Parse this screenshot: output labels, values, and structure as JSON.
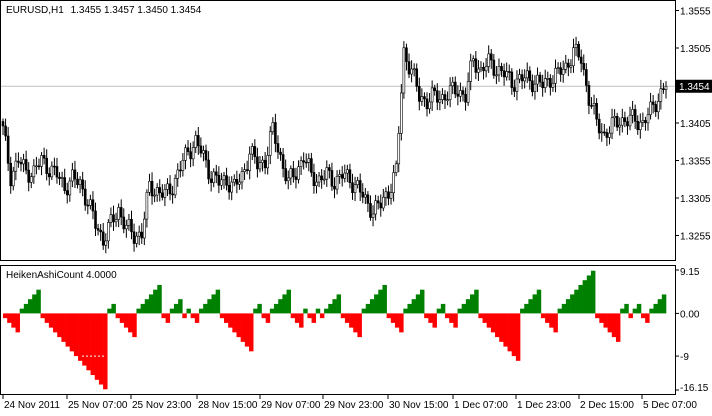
{
  "chart_data": [
    {
      "type": "candlestick",
      "title": "EURUSD,H1",
      "ohlc_header": "1.3455 1.3457 1.3450 1.3454",
      "current_price_label": "1.3454",
      "current_price": 1.3454,
      "ylim": [
        1.3225,
        1.3565
      ],
      "y_ticks": [
        {
          "value": 1.3555,
          "label": "1.3555"
        },
        {
          "value": 1.3505,
          "label": "1.3505"
        },
        {
          "value": 1.3454,
          "label": "1.3454"
        },
        {
          "value": 1.3405,
          "label": "1.3405"
        },
        {
          "value": 1.3355,
          "label": "1.3355"
        },
        {
          "value": 1.3305,
          "label": "1.3305"
        },
        {
          "value": 1.3255,
          "label": "1.3255"
        }
      ],
      "x_labels": [
        "24 Nov 2011",
        "25 Nov 07:00",
        "25 Nov 23:00",
        "28 Nov 15:00",
        "29 Nov 07:00",
        "29 Nov 23:00",
        "30 Nov 15:00",
        "1 Dec 07:00",
        "1 Dec 23:00",
        "2 Dec 15:00",
        "5 Dec 07:00"
      ],
      "colors": {
        "candle_up": "#ffffff",
        "candle_down": "#000000",
        "outline": "#000000",
        "price_line": "#c0c0c0"
      },
      "close_path": [
        [
          0,
          1.3395
        ],
        [
          3,
          1.3335
        ],
        [
          6,
          1.3355
        ],
        [
          9,
          1.334
        ],
        [
          12,
          1.334
        ],
        [
          15,
          1.3355
        ],
        [
          18,
          1.3345
        ],
        [
          21,
          1.3335
        ],
        [
          24,
          1.332
        ],
        [
          27,
          1.333
        ],
        [
          30,
          1.3325
        ],
        [
          33,
          1.33
        ],
        [
          36,
          1.327
        ],
        [
          39,
          1.325
        ],
        [
          42,
          1.327
        ],
        [
          45,
          1.329
        ],
        [
          48,
          1.3265
        ],
        [
          51,
          1.3255
        ],
        [
          54,
          1.3258
        ],
        [
          57,
          1.332
        ],
        [
          60,
          1.3315
        ],
        [
          63,
          1.3308
        ],
        [
          66,
          1.3322
        ],
        [
          69,
          1.3345
        ],
        [
          72,
          1.3368
        ],
        [
          75,
          1.338
        ],
        [
          78,
          1.336
        ],
        [
          81,
          1.3335
        ],
        [
          84,
          1.3325
        ],
        [
          87,
          1.333
        ],
        [
          90,
          1.3318
        ],
        [
          93,
          1.3335
        ],
        [
          96,
          1.3365
        ],
        [
          99,
          1.335
        ],
        [
          102,
          1.3355
        ],
        [
          105,
          1.3395
        ],
        [
          108,
          1.336
        ],
        [
          111,
          1.3325
        ],
        [
          114,
          1.334
        ],
        [
          117,
          1.336
        ],
        [
          120,
          1.3335
        ],
        [
          123,
          1.333
        ],
        [
          126,
          1.3335
        ],
        [
          129,
          1.3328
        ],
        [
          132,
          1.3335
        ],
        [
          135,
          1.333
        ],
        [
          138,
          1.332
        ],
        [
          141,
          1.33
        ],
        [
          144,
          1.329
        ],
        [
          147,
          1.3295
        ],
        [
          150,
          1.3315
        ],
        [
          153,
          1.334
        ],
        [
          156,
          1.35
        ],
        [
          159,
          1.3475
        ],
        [
          162,
          1.344
        ],
        [
          165,
          1.3435
        ],
        [
          168,
          1.344
        ],
        [
          171,
          1.344
        ],
        [
          174,
          1.3445
        ],
        [
          177,
          1.345
        ],
        [
          180,
          1.344
        ],
        [
          183,
          1.349
        ],
        [
          186,
          1.3475
        ],
        [
          189,
          1.3485
        ],
        [
          192,
          1.3478
        ],
        [
          195,
          1.347
        ],
        [
          198,
          1.346
        ],
        [
          201,
          1.3462
        ],
        [
          204,
          1.3465
        ],
        [
          207,
          1.346
        ],
        [
          210,
          1.3455
        ],
        [
          213,
          1.3465
        ],
        [
          216,
          1.347
        ],
        [
          219,
          1.348
        ],
        [
          222,
          1.35
        ],
        [
          225,
          1.349
        ],
        [
          228,
          1.344
        ],
        [
          231,
          1.3405
        ],
        [
          234,
          1.339
        ],
        [
          237,
          1.34
        ],
        [
          240,
          1.341
        ],
        [
          243,
          1.3408
        ],
        [
          246,
          1.341
        ],
        [
          249,
          1.3405
        ],
        [
          252,
          1.342
        ],
        [
          255,
          1.344
        ],
        [
          258,
          1.3454
        ]
      ]
    },
    {
      "type": "bar",
      "title": "HeikenAshiCount 4.0000",
      "ylim": [
        -16.15,
        9.15
      ],
      "y_ticks": [
        {
          "value": 9.15,
          "label": "9.15"
        },
        {
          "value": 0.0,
          "label": "0.00"
        },
        {
          "value": -9,
          "label": "-9"
        },
        {
          "value": -16.15,
          "label": "-16.15"
        }
      ],
      "dashed_level": -9,
      "colors": {
        "positive": "#008000",
        "negative": "#ff0000"
      },
      "values": [
        -1,
        -2,
        -3,
        -4,
        1,
        2,
        3,
        4,
        5,
        -1,
        -2,
        -3,
        -4,
        -5,
        -6,
        -7,
        -8,
        -9,
        -10,
        -11,
        -12,
        -13,
        -14,
        -15,
        -16,
        1,
        2,
        -1,
        -2,
        -3,
        -4,
        -5,
        1,
        2,
        3,
        4,
        5,
        6,
        -1,
        -2,
        1,
        2,
        3,
        -1,
        1,
        -1,
        -2,
        1,
        2,
        3,
        4,
        5,
        -1,
        -2,
        -3,
        -4,
        -5,
        -6,
        -7,
        -8,
        1,
        2,
        -1,
        -2,
        1,
        2,
        3,
        4,
        5,
        -1,
        -2,
        -3,
        1,
        -1,
        -2,
        1,
        -1,
        1,
        2,
        3,
        4,
        -1,
        -2,
        -3,
        -4,
        -5,
        1,
        2,
        3,
        4,
        5,
        6,
        -1,
        -2,
        -3,
        -4,
        1,
        2,
        3,
        4,
        5,
        -1,
        -2,
        -3,
        1,
        2,
        -1,
        -2,
        -3,
        1,
        2,
        3,
        4,
        5,
        -1,
        -2,
        -3,
        -4,
        -5,
        -6,
        -7,
        -8,
        -9,
        -10,
        1,
        2,
        3,
        4,
        5,
        -1,
        -2,
        -3,
        -4,
        1,
        2,
        3,
        4,
        5,
        6,
        7,
        8,
        9,
        -1,
        -2,
        -3,
        -4,
        -5,
        -6,
        1,
        2,
        -1,
        1,
        2,
        -1,
        -2,
        1,
        2,
        3,
        4
      ]
    }
  ]
}
